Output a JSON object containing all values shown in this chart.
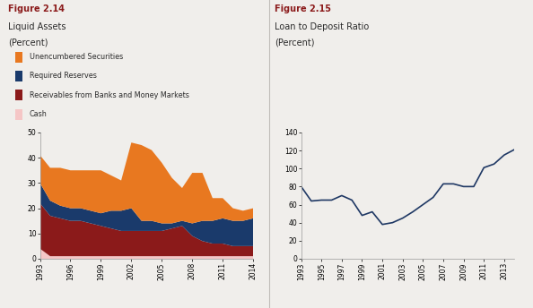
{
  "fig214": {
    "title_bold": "Figure 2.14",
    "title_line2": "Liquid Assets",
    "title_line3": "(Percent)",
    "years": [
      1993,
      1994,
      1995,
      1996,
      1997,
      1998,
      1999,
      2000,
      2001,
      2002,
      2003,
      2004,
      2005,
      2006,
      2007,
      2008,
      2009,
      2010,
      2011,
      2012,
      2013,
      2014
    ],
    "cash": [
      4.0,
      1.0,
      1.0,
      1.0,
      1.0,
      1.0,
      1.0,
      1.0,
      1.0,
      1.0,
      1.0,
      1.0,
      1.0,
      1.0,
      1.0,
      1.0,
      1.0,
      1.0,
      1.0,
      1.0,
      1.0,
      1.0
    ],
    "receivables": [
      18,
      16,
      15,
      14,
      14,
      13,
      12,
      11,
      10,
      10,
      10,
      10,
      10,
      11,
      12,
      8,
      6,
      5,
      5,
      4,
      4,
      4
    ],
    "required_reserves": [
      8,
      6,
      5,
      5,
      5,
      5,
      5,
      7,
      8,
      9,
      4,
      4,
      3,
      2,
      2,
      5,
      8,
      9,
      10,
      10,
      10,
      11
    ],
    "unencumbered_securities": [
      11,
      13,
      15,
      15,
      15,
      16,
      17,
      14,
      12,
      26,
      30,
      28,
      24,
      18,
      13,
      20,
      19,
      9,
      8,
      5,
      4,
      4
    ],
    "colors": {
      "cash": "#f5c6c6",
      "receivables": "#8B1A1A",
      "required_reserves": "#1a3a6b",
      "unencumbered_securities": "#e87820"
    },
    "ylim": [
      0,
      50
    ],
    "yticks": [
      0,
      10,
      20,
      30,
      40,
      50
    ],
    "xticks": [
      1993,
      1996,
      1999,
      2002,
      2005,
      2008,
      2011,
      2014
    ]
  },
  "fig215": {
    "title_bold": "Figure 2.15",
    "title_line2": "Loan to Deposit Ratio",
    "title_line3": "(Percent)",
    "years": [
      1993,
      1994,
      1995,
      1996,
      1997,
      1998,
      1999,
      2000,
      2001,
      2002,
      2003,
      2004,
      2005,
      2006,
      2007,
      2008,
      2009,
      2010,
      2011,
      2012,
      2013,
      2014
    ],
    "values": [
      80,
      64,
      65,
      65,
      70,
      65,
      48,
      52,
      38,
      40,
      45,
      52,
      60,
      68,
      83,
      83,
      80,
      80,
      101,
      105,
      115,
      121
    ],
    "line_color": "#1f3864",
    "ylim": [
      0,
      140
    ],
    "yticks": [
      0,
      20,
      40,
      60,
      80,
      100,
      120,
      140
    ],
    "xticks": [
      1993,
      1995,
      1997,
      1999,
      2001,
      2003,
      2005,
      2007,
      2009,
      2011,
      2013
    ]
  },
  "background_color": "#f0eeeb",
  "header_bg": "#e8e5e0",
  "title_color": "#8B1A1A",
  "text_color": "#2a2a2a",
  "divider_color": "#c0bdb8"
}
